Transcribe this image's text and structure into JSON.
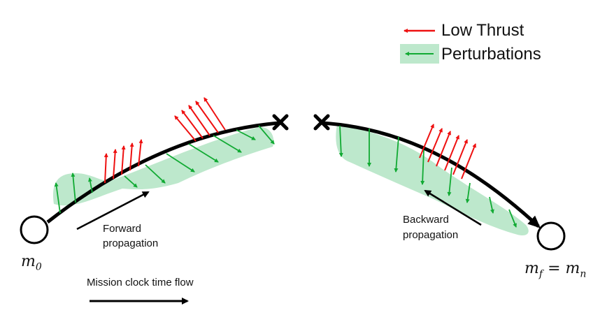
{
  "legend": {
    "low_thrust": "Low Thrust",
    "perturbations": "Perturbations"
  },
  "labels": {
    "forward_1": "Forward",
    "forward_2": "propagation",
    "backward_1": "Backward",
    "backward_2": "propagation",
    "clock": "Mission clock time flow"
  },
  "nodes": {
    "start": {
      "symbol": "m",
      "sub": "0"
    },
    "end": {
      "lhs": "m",
      "lhs_sub": "f",
      "eq": "=",
      "rhs": "m",
      "rhs_sub": "n"
    }
  },
  "colors": {
    "thrust": "#ee1111",
    "perturbation": "#11aa33",
    "perturbation_region": "#bde8cc",
    "trajectory": "#000000"
  }
}
